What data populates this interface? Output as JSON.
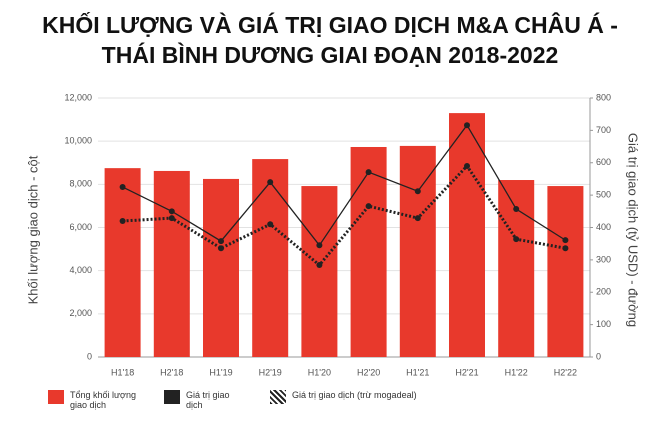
{
  "chart_data": {
    "type": "bar",
    "title": "KHỐI LƯỢNG VÀ GIÁ TRỊ GIAO DỊCH M&A CHÂU Á - THÁI BÌNH DƯƠNG GIAI ĐOẠN 2018-2022",
    "y_label": "Khối lượng giao dịch - cột",
    "y2_label": "Giá trị giao dịch (tỷ USD) - đường",
    "categories": [
      "H1'18",
      "H2'18",
      "H1'19",
      "H2'19",
      "H1'20",
      "H2'20",
      "H1'21",
      "H2'21",
      "H1'22",
      "H2'22"
    ],
    "series": [
      {
        "name": "Tổng khối lượng giao dịch",
        "type": "bar",
        "color": "#e8392c",
        "values": [
          8750,
          8620,
          8250,
          9170,
          7920,
          9730,
          9780,
          11300,
          8200,
          7920
        ]
      },
      {
        "name": "Giá trị giao dịch",
        "type": "line",
        "axis": "y2",
        "color": "#222222",
        "dashed": false,
        "values": [
          525,
          450,
          358,
          540,
          345,
          571,
          512,
          716,
          457,
          361
        ]
      },
      {
        "name": "Giá trị giao dịch (trừ mogadeal)",
        "type": "line",
        "axis": "y2",
        "color": "#222222",
        "dashed": true,
        "values": [
          420,
          429,
          336,
          410,
          284,
          466,
          429,
          590,
          364,
          336
        ]
      }
    ],
    "ylim": [
      0,
      12000
    ],
    "yticks": [
      0,
      {
        "value": 2000,
        "label": "2,000"
      },
      {
        "value": 4000,
        "label": "4,000"
      },
      {
        "value": 6000,
        "label": "6,000"
      },
      {
        "value": 8000,
        "label": "8,000"
      },
      {
        "value": 10000,
        "label": "10,000"
      },
      {
        "value": 12000,
        "label": "12,000"
      }
    ],
    "y2lim": [
      0,
      800
    ],
    "y2ticks": [
      0,
      100,
      200,
      300,
      400,
      500,
      600,
      700,
      800
    ],
    "grid": true
  }
}
